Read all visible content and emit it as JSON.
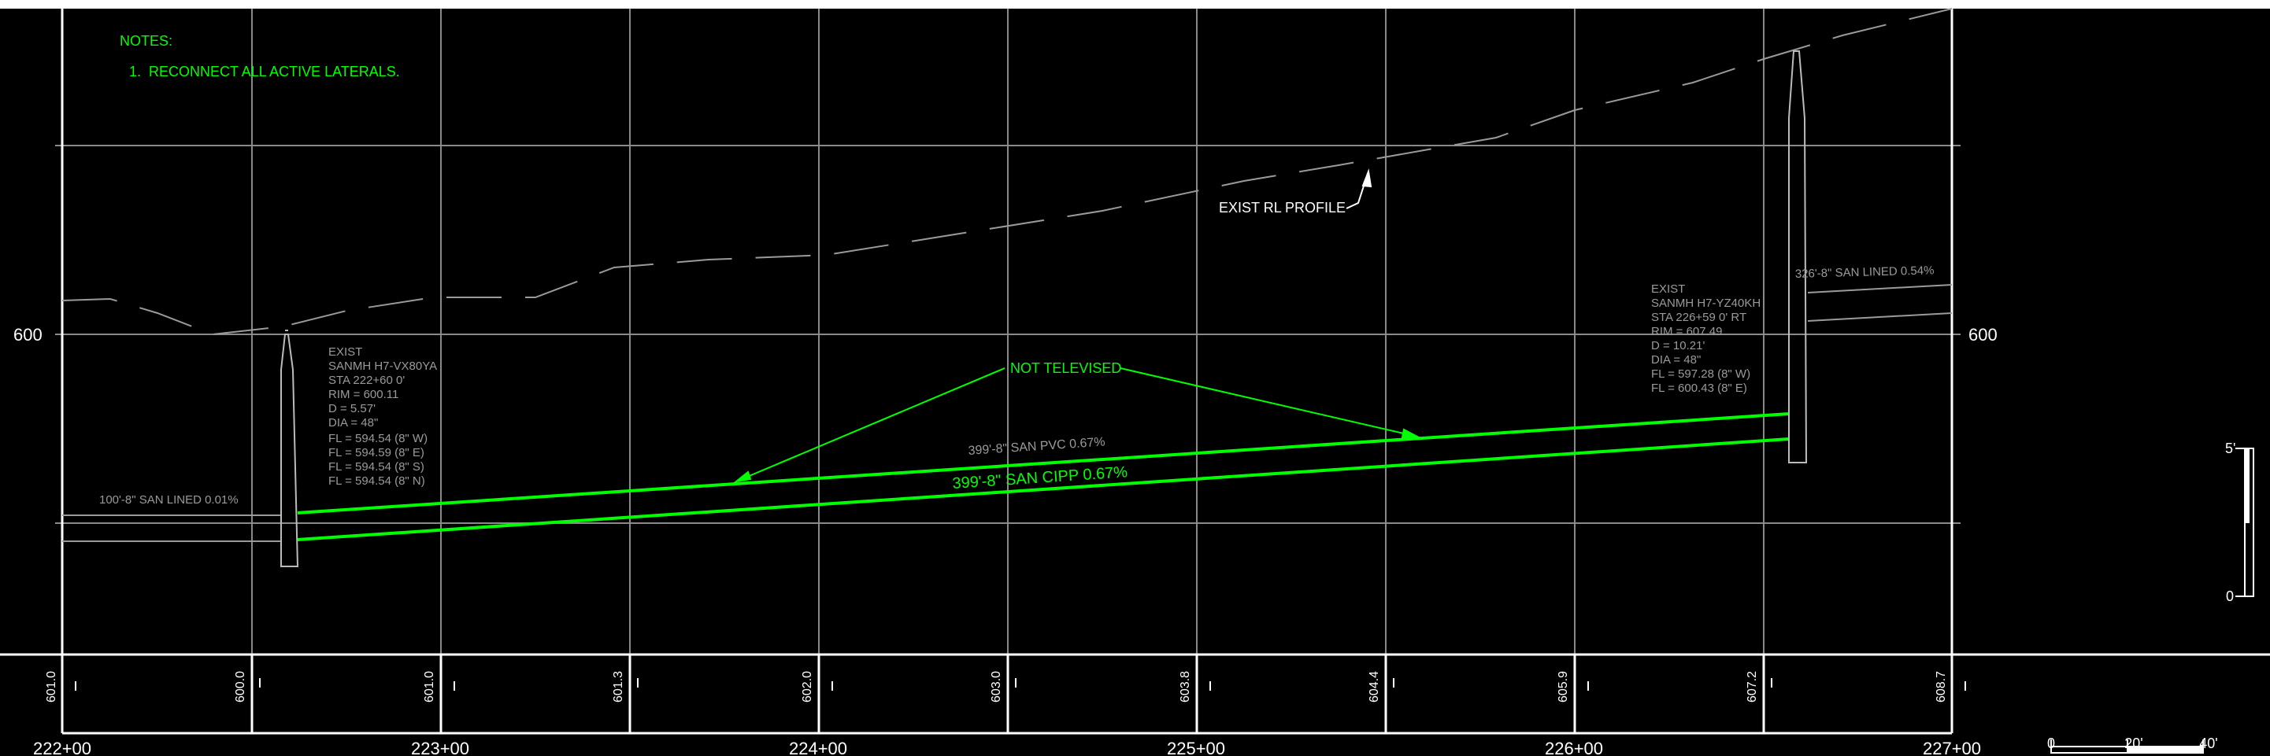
{
  "notes": {
    "heading": "NOTES:",
    "items": [
      "1.  RECONNECT ALL ACTIVE LATERALS."
    ]
  },
  "elevation_labels": {
    "left": "600",
    "right": "600"
  },
  "labels": {
    "exist_rl_profile": "EXIST RL PROFILE",
    "not_televised": "NOT TELEVISED",
    "pipe_existing": "399'-8\" SAN PVC 0.67%",
    "pipe_proposed": "399'-8\" SAN CIPP 0.67%",
    "lateral_left": "100'-8\" SAN LINED 0.01%",
    "lateral_right": "326'-8\" SAN LINED 0.54%"
  },
  "manhole_left": {
    "lines": [
      "EXIST",
      "SANMH H7-VX80YA",
      "STA 222+60 0'",
      "RIM = 600.11",
      "D = 5.57'",
      "DIA = 48\"",
      "FL = 594.54 (8\" W)",
      "FL = 594.59 (8\" E)",
      "FL = 594.54 (8\" S)",
      "FL = 594.54 (8\" N)"
    ]
  },
  "manhole_right": {
    "lines": [
      "EXIST",
      "SANMH H7-YZ40KH",
      "STA 226+59 0' RT",
      "RIM = 607.49",
      "D = 10.21'",
      "DIA = 48\"",
      "FL = 597.28 (8\" W)",
      "FL = 600.43 (8\" E)"
    ]
  },
  "stations": [
    "222+00",
    "223+00",
    "224+00",
    "225+00",
    "226+00",
    "227+00"
  ],
  "ground_elevations": [
    "601.0",
    "600.0",
    "601.0",
    "601.3",
    "602.0",
    "603.0",
    "603.8",
    "604.4",
    "605.9",
    "607.2",
    "608.7"
  ],
  "vertical_scale": {
    "top": "5'",
    "bottom": "0"
  },
  "horizontal_scale": [
    "0",
    "20'",
    "40'"
  ],
  "colors": {
    "background": "#000000",
    "grid": "#8a8a8a",
    "border": "#ffffff",
    "proposed": "#00ff00",
    "existing_text": "#9a9a9a",
    "label": "#ffffff"
  }
}
